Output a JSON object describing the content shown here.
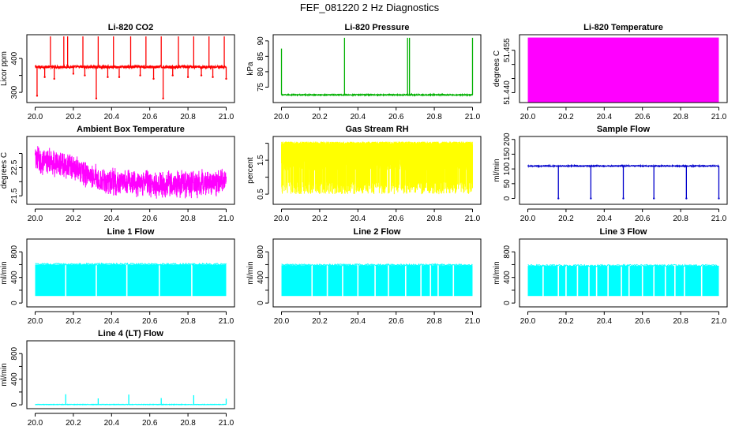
{
  "figure_title": "FEF_081220  2 Hz Diagnostics",
  "chart_data": [
    {
      "type": "line",
      "title": "Li-820 CO2",
      "xlabel": "",
      "ylabel": "Licor ppm",
      "color": "#ff0000",
      "xlim": [
        20.0,
        21.0
      ],
      "ylim": [
        270,
        470
      ],
      "xticks": [
        20.0,
        20.2,
        20.4,
        20.6,
        20.8,
        21.0
      ],
      "yticks": [
        300,
        350,
        400
      ],
      "ytick_labels": [
        "300",
        "",
        "400"
      ],
      "series": [
        {
          "name": "CO2",
          "baseline": 375,
          "noise": 4,
          "spikes_up": [
            20.08,
            20.15,
            20.17,
            20.25,
            20.33,
            20.41,
            20.5,
            20.58,
            20.66,
            20.75,
            20.83,
            20.91,
            20.99
          ],
          "spike_up_to": 465,
          "spikes_down": [
            20.01,
            20.05,
            20.1,
            20.2,
            20.26,
            20.32,
            20.38,
            20.44,
            20.55,
            20.62,
            20.67,
            20.72,
            20.8,
            20.87,
            20.93,
            21.0
          ],
          "spike_down_to": [
            290,
            345,
            340,
            355,
            350,
            282,
            345,
            345,
            350,
            340,
            282,
            350,
            345,
            350,
            345,
            340
          ]
        }
      ]
    },
    {
      "type": "line",
      "title": "Li-820 Pressure",
      "xlabel": "",
      "ylabel": "kPa",
      "color": "#00b000",
      "xlim": [
        20.0,
        21.0
      ],
      "ylim": [
        70,
        92
      ],
      "xticks": [
        20.0,
        20.2,
        20.4,
        20.6,
        20.8,
        21.0
      ],
      "yticks": [
        75,
        80,
        85,
        90
      ],
      "ytick_labels": [
        "75",
        "80",
        "85",
        "90"
      ],
      "series": [
        {
          "name": "Pressure",
          "baseline": 72.5,
          "noise": 0.15,
          "spikes_up": [
            20.0,
            20.33,
            20.66,
            20.67,
            21.0
          ],
          "spike_up_to": [
            87.5,
            91,
            91,
            91,
            91
          ]
        }
      ]
    },
    {
      "type": "area",
      "title": "Li-820 Temperature",
      "xlabel": "",
      "ylabel": "degrees C",
      "color": "#ff00ff",
      "xlim": [
        20.0,
        21.0
      ],
      "ylim": [
        51.4365,
        51.4605
      ],
      "xticks": [
        20.0,
        20.2,
        20.4,
        20.6,
        20.8,
        21.0
      ],
      "yticks": [
        51.44,
        51.445,
        51.45,
        51.455
      ],
      "ytick_labels": [
        "51.440",
        "",
        "",
        "51.455"
      ],
      "series": [
        {
          "name": "Temperature",
          "fill_from": 51.4365,
          "fill_to": 51.4595
        }
      ]
    },
    {
      "type": "line",
      "title": "Ambient Box Temperature",
      "xlabel": "",
      "ylabel": "degrees C",
      "color": "#ff00ff",
      "xlim": [
        20.0,
        21.0
      ],
      "ylim": [
        21.2,
        23.6
      ],
      "xticks": [
        20.0,
        20.2,
        20.4,
        20.6,
        20.8,
        21.0
      ],
      "yticks": [
        21.5,
        22.0,
        22.5,
        23.0
      ],
      "ytick_labels": [
        "21.5",
        "",
        "22.5",
        ""
      ],
      "series": [
        {
          "name": "Ambient",
          "trend": [
            [
              20.0,
              22.8
            ],
            [
              20.2,
              22.5
            ],
            [
              20.35,
              22.05
            ],
            [
              20.55,
              21.95
            ],
            [
              20.7,
              21.9
            ],
            [
              21.0,
              22.0
            ]
          ],
          "band": 0.9
        }
      ]
    },
    {
      "type": "line",
      "title": "Gas Stream RH",
      "xlabel": "",
      "ylabel": "percent",
      "color": "#ffff00",
      "xlim": [
        20.0,
        21.0
      ],
      "ylim": [
        0.2,
        2.2
      ],
      "xticks": [
        20.0,
        20.2,
        20.4,
        20.6,
        20.8,
        21.0
      ],
      "yticks": [
        0.5,
        1.0,
        1.5,
        2.0
      ],
      "ytick_labels": [
        "0.5",
        "",
        "1.5",
        ""
      ],
      "series": [
        {
          "name": "RH",
          "upper": 2.05,
          "lower": 0.5,
          "dense_to": 1.2
        }
      ]
    },
    {
      "type": "line",
      "title": "Sample Flow",
      "xlabel": "",
      "ylabel": "ml/min",
      "color": "#0000cc",
      "xlim": [
        20.0,
        21.0
      ],
      "ylim": [
        -20,
        210
      ],
      "xticks": [
        20.0,
        20.2,
        20.4,
        20.6,
        20.8,
        21.0
      ],
      "yticks": [
        0,
        50,
        100,
        150,
        200
      ],
      "ytick_labels": [
        "0",
        "50",
        "100",
        "150",
        "200"
      ],
      "series": [
        {
          "name": "Sample Flow",
          "baseline": 110,
          "noise": 1.5,
          "spikes_down": [
            20.16,
            20.33,
            20.5,
            20.66,
            20.83,
            21.0
          ],
          "spike_down_to": 0
        }
      ]
    },
    {
      "type": "area",
      "title": "Line 1 Flow",
      "xlabel": "",
      "ylabel": "ml/min",
      "color": "#00ffff",
      "xlim": [
        20.0,
        21.0
      ],
      "ylim": [
        -60,
        1000
      ],
      "xticks": [
        20.0,
        20.2,
        20.4,
        20.6,
        20.8,
        21.0
      ],
      "yticks": [
        0,
        200,
        400,
        600,
        800
      ],
      "ytick_labels": [
        "0",
        "",
        "400",
        "",
        "800"
      ],
      "series": [
        {
          "name": "Line 1",
          "fill_from": 110,
          "fill_to": 600,
          "gaps": [
            20.16,
            20.32,
            20.48,
            20.65,
            20.82
          ]
        }
      ]
    },
    {
      "type": "area",
      "title": "Line 2 Flow",
      "xlabel": "",
      "ylabel": "ml/min",
      "color": "#00ffff",
      "xlim": [
        20.0,
        21.0
      ],
      "ylim": [
        -60,
        1000
      ],
      "xticks": [
        20.0,
        20.2,
        20.4,
        20.6,
        20.8,
        21.0
      ],
      "yticks": [
        0,
        200,
        400,
        600,
        800
      ],
      "ytick_labels": [
        "0",
        "",
        "400",
        "",
        "800"
      ],
      "series": [
        {
          "name": "Line 2",
          "fill_from": 110,
          "fill_to": 590,
          "gaps": [
            20.16,
            20.24,
            20.32,
            20.4,
            20.49,
            20.56,
            20.65,
            20.73,
            20.78,
            20.82,
            20.9
          ]
        }
      ]
    },
    {
      "type": "area",
      "title": "Line 3 Flow",
      "xlabel": "",
      "ylabel": "ml/min",
      "color": "#00ffff",
      "xlim": [
        20.0,
        21.0
      ],
      "ylim": [
        -60,
        1000
      ],
      "xticks": [
        20.0,
        20.2,
        20.4,
        20.6,
        20.8,
        21.0
      ],
      "yticks": [
        0,
        200,
        400,
        600,
        800
      ],
      "ytick_labels": [
        "0",
        "",
        "400",
        "",
        "800"
      ],
      "series": [
        {
          "name": "Line 3",
          "fill_from": 110,
          "fill_to": 580,
          "gaps": [
            20.08,
            20.16,
            20.2,
            20.26,
            20.32,
            20.36,
            20.42,
            20.49,
            20.53,
            20.6,
            20.66,
            20.72,
            20.77,
            20.82,
            20.91
          ]
        }
      ]
    },
    {
      "type": "line",
      "title": "Line 4 (LT) Flow",
      "xlabel": "",
      "ylabel": "ml/min",
      "color": "#00ffff",
      "xlim": [
        20.0,
        21.0
      ],
      "ylim": [
        -60,
        1000
      ],
      "xticks": [
        20.0,
        20.2,
        20.4,
        20.6,
        20.8,
        21.0
      ],
      "yticks": [
        0,
        200,
        400,
        600,
        800
      ],
      "ytick_labels": [
        "0",
        "",
        "400",
        "",
        "800"
      ],
      "series": [
        {
          "name": "Line 4",
          "baseline": 5,
          "noise": 3,
          "spikes_up": [
            20.16,
            20.33,
            20.49,
            20.66,
            20.83,
            21.0
          ],
          "spike_up_to": [
            165,
            100,
            160,
            105,
            150,
            95
          ]
        }
      ]
    }
  ]
}
